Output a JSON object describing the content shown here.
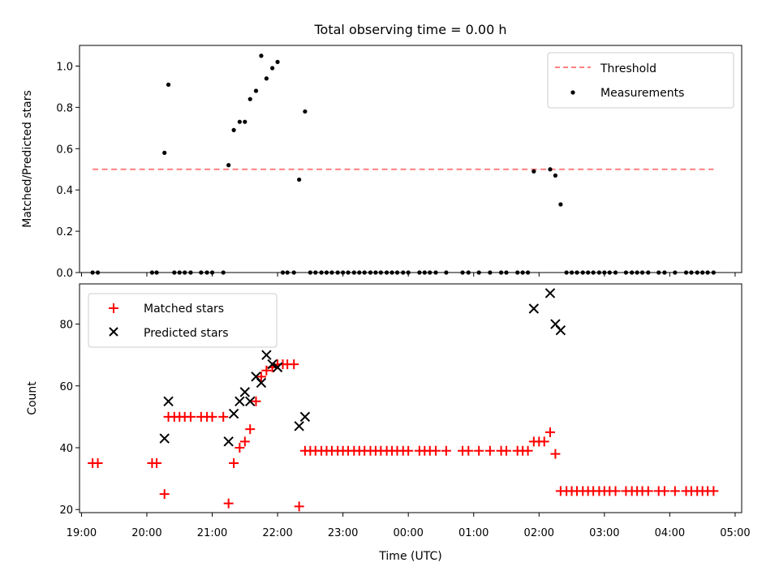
{
  "chart_data": [
    {
      "type": "scatter",
      "title": "Total observing time = 0.00 h",
      "xlabel": "",
      "ylabel": "Matched/Predicted stars",
      "xlim_hours": [
        18.97,
        29.1
      ],
      "ylim": [
        0,
        1.1
      ],
      "yticks": [
        "0.0",
        "0.2",
        "0.4",
        "0.6",
        "0.8",
        "1.0"
      ],
      "grid": false,
      "legend_position": "top-right",
      "threshold": {
        "name": "Threshold",
        "y": 0.5,
        "x_start": 19.17,
        "x_end": 28.67,
        "color": "#ff8080",
        "style": "dashed"
      },
      "series": [
        {
          "name": "Measurements",
          "color": "#000000",
          "marker": "dot",
          "points": [
            [
              19.17,
              0
            ],
            [
              19.25,
              0
            ],
            [
              20.08,
              0
            ],
            [
              20.15,
              0
            ],
            [
              20.27,
              0.58
            ],
            [
              20.33,
              0.91
            ],
            [
              20.42,
              0
            ],
            [
              20.5,
              0
            ],
            [
              20.58,
              0
            ],
            [
              20.67,
              0
            ],
            [
              20.83,
              0
            ],
            [
              20.92,
              0
            ],
            [
              21.0,
              0
            ],
            [
              21.17,
              0
            ],
            [
              21.25,
              0.52
            ],
            [
              21.33,
              0.69
            ],
            [
              21.42,
              0.73
            ],
            [
              21.5,
              0.73
            ],
            [
              21.58,
              0.84
            ],
            [
              21.67,
              0.88
            ],
            [
              21.75,
              1.05
            ],
            [
              21.83,
              0.94
            ],
            [
              21.92,
              0.99
            ],
            [
              22.0,
              1.02
            ],
            [
              22.08,
              0
            ],
            [
              22.15,
              0
            ],
            [
              22.25,
              0
            ],
            [
              22.33,
              0.45
            ],
            [
              22.42,
              0.78
            ],
            [
              22.5,
              0
            ],
            [
              22.58,
              0
            ],
            [
              22.67,
              0
            ],
            [
              22.75,
              0
            ],
            [
              22.83,
              0
            ],
            [
              22.92,
              0
            ],
            [
              23.0,
              0
            ],
            [
              23.08,
              0
            ],
            [
              23.17,
              0
            ],
            [
              23.25,
              0
            ],
            [
              23.33,
              0
            ],
            [
              23.42,
              0
            ],
            [
              23.5,
              0
            ],
            [
              23.58,
              0
            ],
            [
              23.67,
              0
            ],
            [
              23.75,
              0
            ],
            [
              23.83,
              0
            ],
            [
              23.92,
              0
            ],
            [
              24.0,
              0
            ],
            [
              24.17,
              0
            ],
            [
              24.25,
              0
            ],
            [
              24.33,
              0
            ],
            [
              24.42,
              0
            ],
            [
              24.58,
              0
            ],
            [
              24.83,
              0
            ],
            [
              24.92,
              0
            ],
            [
              25.08,
              0
            ],
            [
              25.25,
              0
            ],
            [
              25.42,
              0
            ],
            [
              25.5,
              0
            ],
            [
              25.67,
              0
            ],
            [
              25.75,
              0
            ],
            [
              25.83,
              0
            ],
            [
              25.92,
              0.49
            ],
            [
              26.17,
              0.5
            ],
            [
              26.25,
              0.47
            ],
            [
              26.33,
              0.33
            ],
            [
              26.42,
              0
            ],
            [
              26.5,
              0
            ],
            [
              26.58,
              0
            ],
            [
              26.67,
              0
            ],
            [
              26.75,
              0
            ],
            [
              26.83,
              0
            ],
            [
              26.92,
              0
            ],
            [
              27.0,
              0
            ],
            [
              27.08,
              0
            ],
            [
              27.17,
              0
            ],
            [
              27.33,
              0
            ],
            [
              27.42,
              0
            ],
            [
              27.5,
              0
            ],
            [
              27.58,
              0
            ],
            [
              27.67,
              0
            ],
            [
              27.83,
              0
            ],
            [
              27.92,
              0
            ],
            [
              28.08,
              0
            ],
            [
              28.25,
              0
            ],
            [
              28.33,
              0
            ],
            [
              28.42,
              0
            ],
            [
              28.5,
              0
            ],
            [
              28.58,
              0
            ],
            [
              28.67,
              0
            ]
          ]
        }
      ]
    },
    {
      "type": "scatter",
      "title": "",
      "xlabel": "Time (UTC)",
      "ylabel": "Count",
      "xlim_hours": [
        18.97,
        29.1
      ],
      "ylim": [
        19,
        93
      ],
      "yticks": [
        "20",
        "40",
        "60",
        "80"
      ],
      "xticks": [
        {
          "h": 19,
          "label": "19:00"
        },
        {
          "h": 20,
          "label": "20:00"
        },
        {
          "h": 21,
          "label": "21:00"
        },
        {
          "h": 22,
          "label": "22:00"
        },
        {
          "h": 23,
          "label": "23:00"
        },
        {
          "h": 24,
          "label": "00:00"
        },
        {
          "h": 25,
          "label": "01:00"
        },
        {
          "h": 26,
          "label": "02:00"
        },
        {
          "h": 27,
          "label": "03:00"
        },
        {
          "h": 28,
          "label": "04:00"
        },
        {
          "h": 29,
          "label": "05:00"
        }
      ],
      "grid": false,
      "legend_position": "top-left",
      "series": [
        {
          "name": "Matched stars",
          "color": "#ff0000",
          "marker": "plus",
          "points": [
            [
              19.17,
              35
            ],
            [
              19.25,
              35
            ],
            [
              20.08,
              35
            ],
            [
              20.15,
              35
            ],
            [
              20.27,
              25
            ],
            [
              20.33,
              50
            ],
            [
              20.42,
              50
            ],
            [
              20.5,
              50
            ],
            [
              20.58,
              50
            ],
            [
              20.67,
              50
            ],
            [
              20.83,
              50
            ],
            [
              20.92,
              50
            ],
            [
              21.0,
              50
            ],
            [
              21.17,
              50
            ],
            [
              21.25,
              22
            ],
            [
              21.33,
              35
            ],
            [
              21.42,
              40
            ],
            [
              21.5,
              42
            ],
            [
              21.58,
              46
            ],
            [
              21.67,
              55
            ],
            [
              21.75,
              63
            ],
            [
              21.83,
              65
            ],
            [
              21.92,
              66
            ],
            [
              22.0,
              67
            ],
            [
              22.08,
              67
            ],
            [
              22.15,
              67
            ],
            [
              22.25,
              67
            ],
            [
              22.33,
              21
            ],
            [
              22.42,
              39
            ],
            [
              22.5,
              39
            ],
            [
              22.58,
              39
            ],
            [
              22.67,
              39
            ],
            [
              22.75,
              39
            ],
            [
              22.83,
              39
            ],
            [
              22.92,
              39
            ],
            [
              23.0,
              39
            ],
            [
              23.08,
              39
            ],
            [
              23.17,
              39
            ],
            [
              23.25,
              39
            ],
            [
              23.33,
              39
            ],
            [
              23.42,
              39
            ],
            [
              23.5,
              39
            ],
            [
              23.58,
              39
            ],
            [
              23.67,
              39
            ],
            [
              23.75,
              39
            ],
            [
              23.83,
              39
            ],
            [
              23.92,
              39
            ],
            [
              24.0,
              39
            ],
            [
              24.17,
              39
            ],
            [
              24.25,
              39
            ],
            [
              24.33,
              39
            ],
            [
              24.42,
              39
            ],
            [
              24.58,
              39
            ],
            [
              24.83,
              39
            ],
            [
              24.92,
              39
            ],
            [
              25.08,
              39
            ],
            [
              25.25,
              39
            ],
            [
              25.42,
              39
            ],
            [
              25.5,
              39
            ],
            [
              25.67,
              39
            ],
            [
              25.75,
              39
            ],
            [
              25.83,
              39
            ],
            [
              25.92,
              42
            ],
            [
              26.0,
              42
            ],
            [
              26.08,
              42
            ],
            [
              26.17,
              45
            ],
            [
              26.25,
              38
            ],
            [
              26.33,
              26
            ],
            [
              26.42,
              26
            ],
            [
              26.5,
              26
            ],
            [
              26.58,
              26
            ],
            [
              26.67,
              26
            ],
            [
              26.75,
              26
            ],
            [
              26.83,
              26
            ],
            [
              26.92,
              26
            ],
            [
              27.0,
              26
            ],
            [
              27.08,
              26
            ],
            [
              27.17,
              26
            ],
            [
              27.33,
              26
            ],
            [
              27.42,
              26
            ],
            [
              27.5,
              26
            ],
            [
              27.58,
              26
            ],
            [
              27.67,
              26
            ],
            [
              27.83,
              26
            ],
            [
              27.92,
              26
            ],
            [
              28.08,
              26
            ],
            [
              28.25,
              26
            ],
            [
              28.33,
              26
            ],
            [
              28.42,
              26
            ],
            [
              28.5,
              26
            ],
            [
              28.58,
              26
            ],
            [
              28.67,
              26
            ]
          ]
        },
        {
          "name": "Predicted stars",
          "color": "#000000",
          "marker": "cross",
          "points": [
            [
              20.27,
              43
            ],
            [
              20.33,
              55
            ],
            [
              21.25,
              42
            ],
            [
              21.33,
              51
            ],
            [
              21.42,
              55
            ],
            [
              21.5,
              58
            ],
            [
              21.58,
              55
            ],
            [
              21.67,
              63
            ],
            [
              21.75,
              61
            ],
            [
              21.83,
              70
            ],
            [
              21.92,
              67
            ],
            [
              22.0,
              66
            ],
            [
              22.33,
              47
            ],
            [
              22.42,
              50
            ],
            [
              25.92,
              85
            ],
            [
              26.17,
              90
            ],
            [
              26.25,
              80
            ],
            [
              26.33,
              78
            ]
          ]
        }
      ]
    }
  ]
}
